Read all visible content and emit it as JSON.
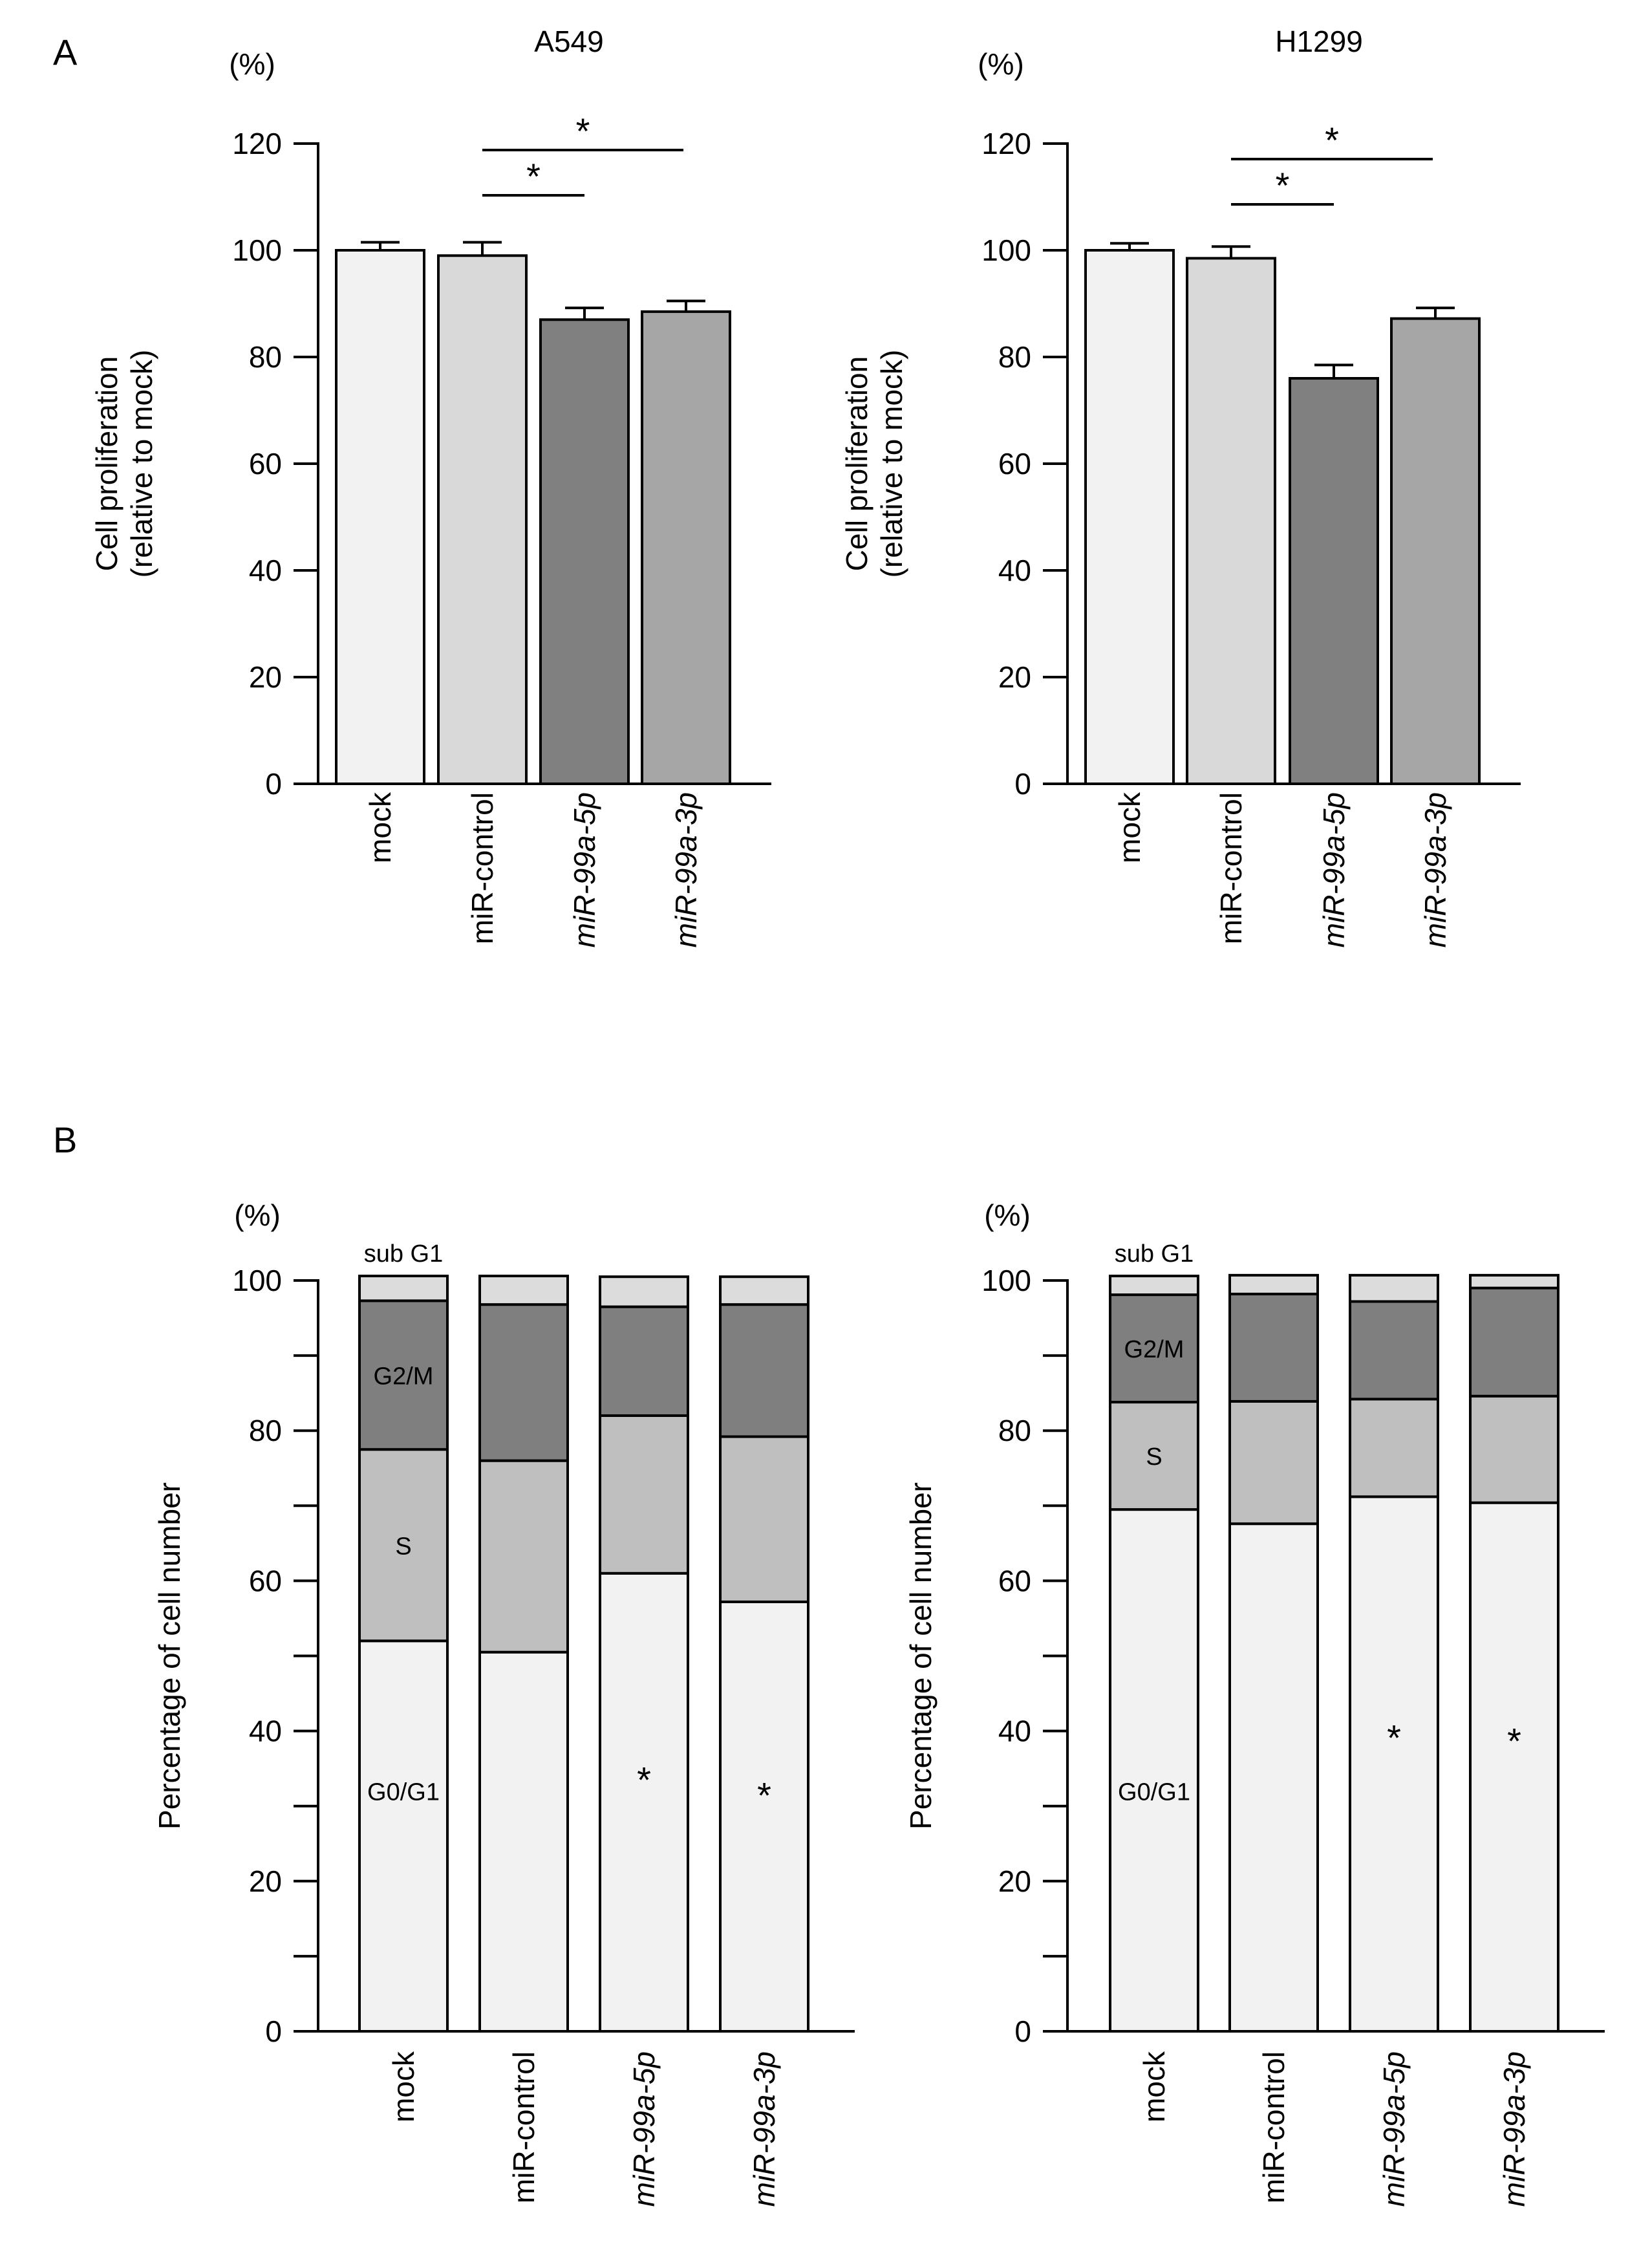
{
  "panel_labels": [
    "A",
    "B"
  ],
  "colors": {
    "axis": "#000000",
    "mock": "#f2f2f2",
    "miR_control": "#d9d9d9",
    "miR_99a_5p": "#808080",
    "miR_99a_3p": "#a6a6a6",
    "sub_G1": "#dcdcdc",
    "G2_M": "#7f7f7f",
    "S": "#bfbfbf",
    "G0_G1": "#f2f2f2"
  },
  "chart_data": [
    {
      "id": "A-left",
      "panel": "A",
      "type": "bar",
      "title": "A549",
      "unit_label": "(%)",
      "ylabel_lines": [
        "Cell proliferation",
        "(relative to mock)"
      ],
      "ylim": [
        0,
        120
      ],
      "yticks": [
        0,
        20,
        40,
        60,
        80,
        100,
        120
      ],
      "categories": [
        "mock",
        "miR-control",
        "miR-99a-5p",
        "miR-99a-3p"
      ],
      "italic_categories": [
        false,
        false,
        true,
        true
      ],
      "values": [
        100,
        99,
        87,
        88.5
      ],
      "errors": [
        1.5,
        2.5,
        2.2,
        2
      ],
      "significance": [
        {
          "from": 1,
          "to": 2,
          "label": "*"
        },
        {
          "from": 1,
          "to": 3,
          "label": "*"
        }
      ]
    },
    {
      "id": "A-right",
      "panel": "A",
      "type": "bar",
      "title": "H1299",
      "unit_label": "(%)",
      "ylabel_lines": [
        "Cell proliferation",
        "(relative to mock)"
      ],
      "ylim": [
        0,
        120
      ],
      "yticks": [
        0,
        20,
        40,
        60,
        80,
        100,
        120
      ],
      "categories": [
        "mock",
        "miR-control",
        "miR-99a-5p",
        "miR-99a-3p"
      ],
      "italic_categories": [
        false,
        false,
        true,
        true
      ],
      "values": [
        100,
        98.5,
        76,
        87.2
      ],
      "errors": [
        1.3,
        2.2,
        2.5,
        2
      ],
      "significance": [
        {
          "from": 1,
          "to": 2,
          "label": "*"
        },
        {
          "from": 1,
          "to": 3,
          "label": "*"
        }
      ]
    },
    {
      "id": "B-left",
      "panel": "B",
      "type": "bar",
      "stacked": true,
      "unit_label": "(%)",
      "ylabel": "Percentage of cell number",
      "ylim": [
        0,
        100
      ],
      "yticks": [
        0,
        20,
        40,
        60,
        80,
        100
      ],
      "categories": [
        "mock",
        "miR-control",
        "miR-99a-5p",
        "miR-99a-3p"
      ],
      "italic_categories": [
        false,
        false,
        true,
        true
      ],
      "series": [
        {
          "name": "G0/G1",
          "values": [
            52,
            50.5,
            61,
            57.2
          ]
        },
        {
          "name": "S",
          "values": [
            25.5,
            25.5,
            21,
            22
          ]
        },
        {
          "name": "G2/M",
          "values": [
            19.8,
            20.8,
            14.5,
            17.6
          ]
        },
        {
          "name": "sub G1",
          "values": [
            3.3,
            3.8,
            4,
            3.7
          ]
        }
      ],
      "segment_labels": [
        {
          "bar": 0,
          "series": "sub G1",
          "label": "sub G1"
        },
        {
          "bar": 0,
          "series": "G2/M",
          "label": "G2/M"
        },
        {
          "bar": 0,
          "series": "S",
          "label": "S"
        },
        {
          "bar": 0,
          "series": "G0/G1",
          "label": "G0/G1"
        }
      ],
      "significance_marks": [
        {
          "bar": 2,
          "label": "*"
        },
        {
          "bar": 3,
          "label": "*"
        }
      ]
    },
    {
      "id": "B-right",
      "panel": "B",
      "type": "bar",
      "stacked": true,
      "unit_label": "(%)",
      "ylabel": "Percentage of cell number",
      "ylim": [
        0,
        100
      ],
      "yticks": [
        0,
        20,
        40,
        60,
        80,
        100
      ],
      "categories": [
        "mock",
        "miR-control",
        "miR-99a-5p",
        "miR-99a-3p"
      ],
      "italic_categories": [
        false,
        false,
        true,
        true
      ],
      "series": [
        {
          "name": "G0/G1",
          "values": [
            69.5,
            67.6,
            71.2,
            70.4
          ]
        },
        {
          "name": "S",
          "values": [
            14.3,
            16.3,
            13,
            14.2
          ]
        },
        {
          "name": "G2/M",
          "values": [
            14.3,
            14.3,
            13,
            14.4
          ]
        },
        {
          "name": "sub G1",
          "values": [
            2.5,
            2.5,
            3.5,
            1.7
          ]
        }
      ],
      "segment_labels": [
        {
          "bar": 0,
          "series": "sub G1",
          "label": "sub G1"
        },
        {
          "bar": 0,
          "series": "G2/M",
          "label": "G2/M"
        },
        {
          "bar": 0,
          "series": "S",
          "label": "S"
        },
        {
          "bar": 0,
          "series": "G0/G1",
          "label": "G0/G1"
        }
      ],
      "significance_marks": [
        {
          "bar": 2,
          "label": "*"
        },
        {
          "bar": 3,
          "label": "*"
        }
      ]
    }
  ]
}
